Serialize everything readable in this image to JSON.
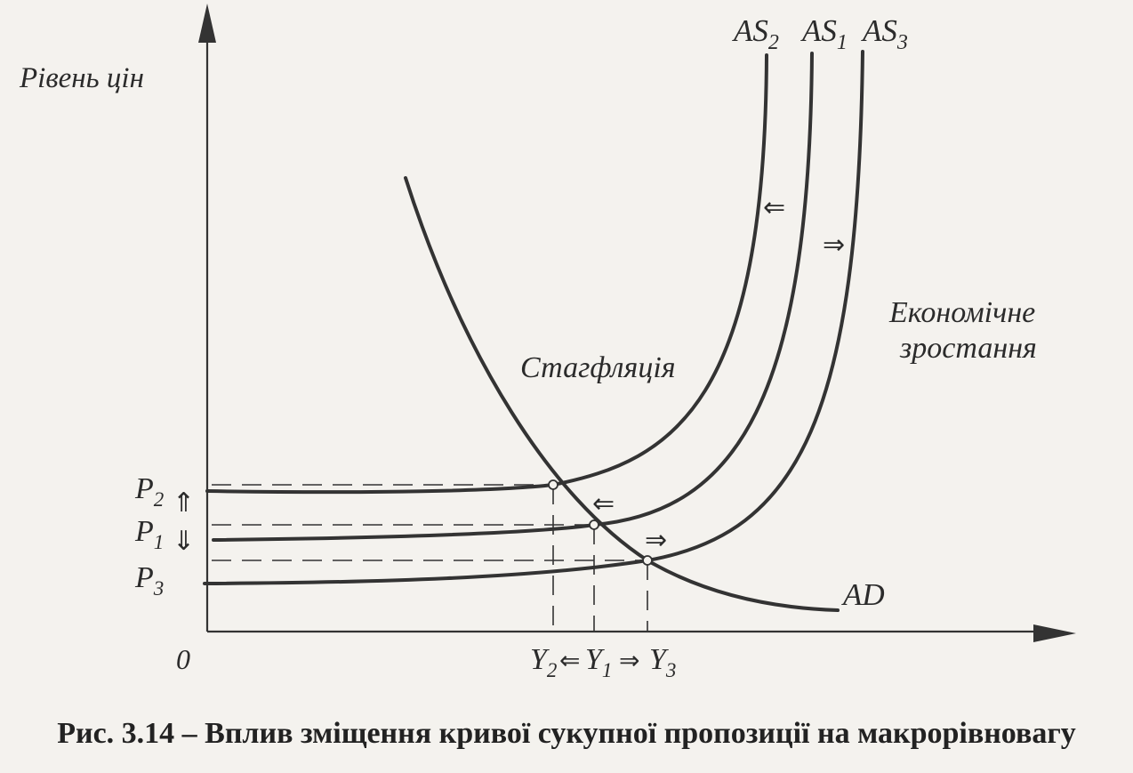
{
  "axes": {
    "y_label": "Рівень цін",
    "origin_label": "0"
  },
  "curves": {
    "as2": {
      "label": "AS",
      "sub": "2"
    },
    "as1": {
      "label": "AS",
      "sub": "1"
    },
    "as3": {
      "label": "AS",
      "sub": "3"
    },
    "ad": {
      "label": "AD"
    }
  },
  "price_labels": {
    "p2": {
      "label": "P",
      "sub": "2"
    },
    "p1": {
      "label": "P",
      "sub": "1"
    },
    "p3": {
      "label": "P",
      "sub": "3"
    }
  },
  "output_labels": {
    "y2": {
      "label": "Y",
      "sub": "2"
    },
    "y1": {
      "label": "Y",
      "sub": "1"
    },
    "y3": {
      "label": "Y",
      "sub": "3"
    }
  },
  "annotations": {
    "stagflation": "Стагфляція",
    "growth_line1": "Економічне",
    "growth_line2": "зростання"
  },
  "arrows": {
    "left": "⇐",
    "right": "⇒",
    "up": "⇑",
    "down": "⇓"
  },
  "caption": "Рис. 3.14 – Вплив  зміщення кривої сукупної пропозиції на макрорівновагу"
}
